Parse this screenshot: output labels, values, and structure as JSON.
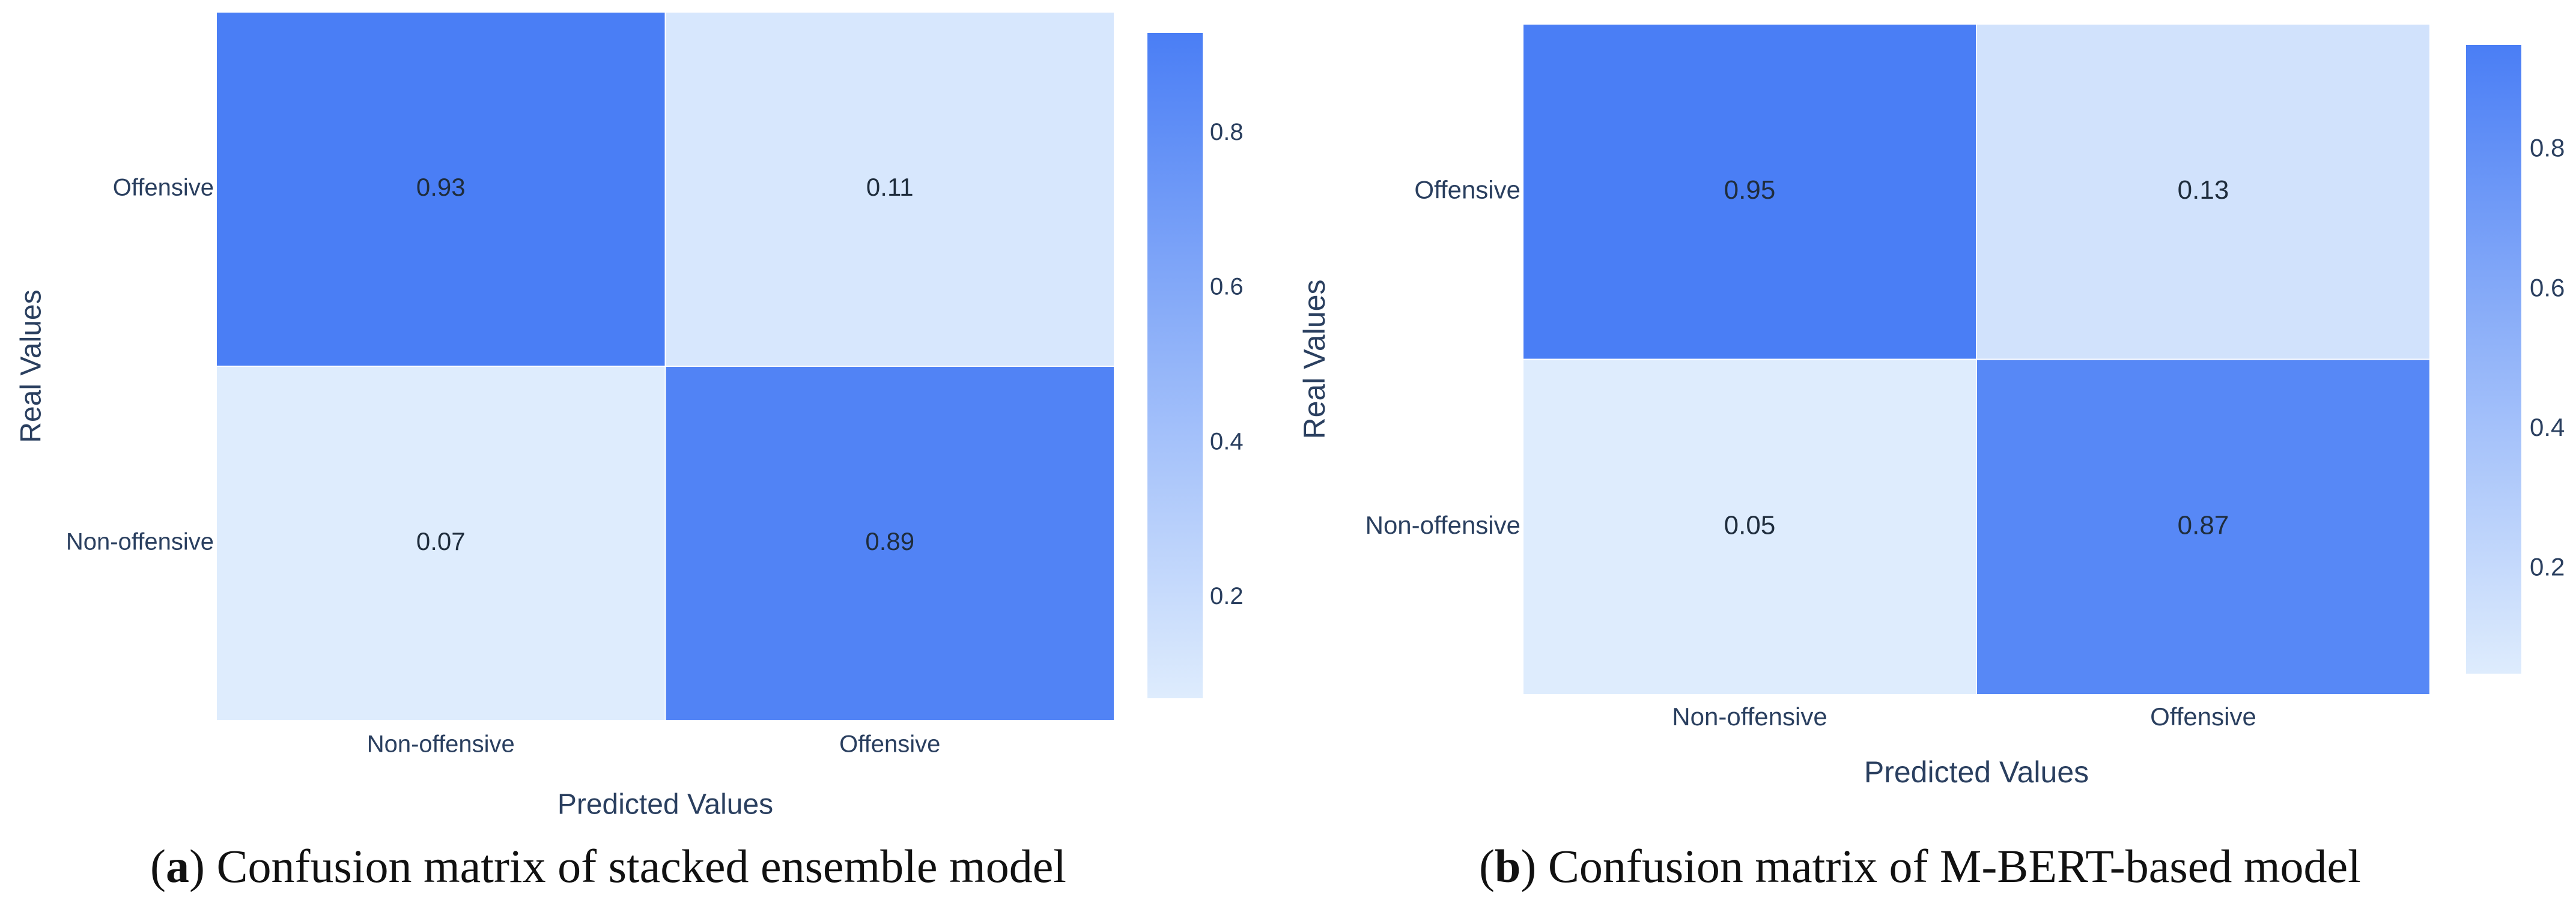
{
  "chart_data": [
    {
      "type": "heatmap",
      "title": "",
      "xlabel": "Predicted Values",
      "ylabel": "Real Values",
      "x_categories": [
        "Non-offensive",
        "Offensive"
      ],
      "y_categories": [
        "Offensive",
        "Non-offensive"
      ],
      "values": [
        [
          0.93,
          0.11
        ],
        [
          0.07,
          0.89
        ]
      ],
      "value_labels": [
        [
          "0.93",
          "0.11"
        ],
        [
          "0.07",
          "0.89"
        ]
      ],
      "zlim": [
        0.07,
        0.93
      ],
      "colorbar_ticks": [
        0.2,
        0.4,
        0.6,
        0.8
      ],
      "colorbar_tick_labels": [
        "0.2",
        "0.4",
        "0.6",
        "0.8"
      ],
      "colorscale": [
        "#deecfd",
        "#4a7ef5"
      ],
      "caption_letter": "a",
      "caption_text": "Confusion matrix of stacked ensemble model"
    },
    {
      "type": "heatmap",
      "title": "",
      "xlabel": "Predicted Values",
      "ylabel": "Real Values",
      "x_categories": [
        "Non-offensive",
        "Offensive"
      ],
      "y_categories": [
        "Offensive",
        "Non-offensive"
      ],
      "values": [
        [
          0.95,
          0.13
        ],
        [
          0.05,
          0.87
        ]
      ],
      "value_labels": [
        [
          "0.95",
          "0.13"
        ],
        [
          "0.05",
          "0.87"
        ]
      ],
      "zlim": [
        0.05,
        0.95
      ],
      "colorbar_ticks": [
        0.2,
        0.4,
        0.6,
        0.8
      ],
      "colorbar_tick_labels": [
        "0.2",
        "0.4",
        "0.6",
        "0.8"
      ],
      "colorscale": [
        "#deecfd",
        "#4a7ef5"
      ],
      "caption_letter": "b",
      "caption_text": "Confusion matrix of M-BERT-based model"
    }
  ],
  "colors": {
    "axis_text": "#2a3f5f",
    "cell_text": "#1f2d3d",
    "grid_line": "#ffffff"
  }
}
